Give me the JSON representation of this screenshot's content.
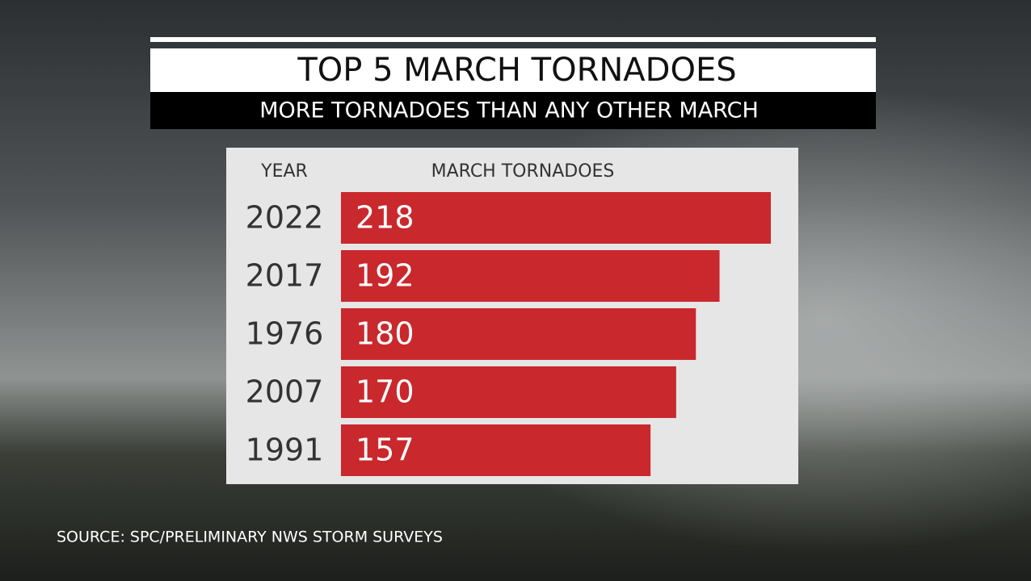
{
  "chart_data": {
    "type": "bar",
    "orientation": "horizontal",
    "title": "TOP 5 MARCH TORNADOES",
    "subtitle": "MORE TORNADOES THAN ANY OTHER MARCH",
    "category_header": "YEAR",
    "value_header": "MARCH TORNADOES",
    "categories": [
      "2022",
      "2017",
      "1976",
      "2007",
      "1991"
    ],
    "values": [
      218,
      192,
      180,
      170,
      157
    ],
    "color": "#c9282d",
    "source": "SOURCE: SPC/PRELIMINARY NWS STORM SURVEYS"
  }
}
